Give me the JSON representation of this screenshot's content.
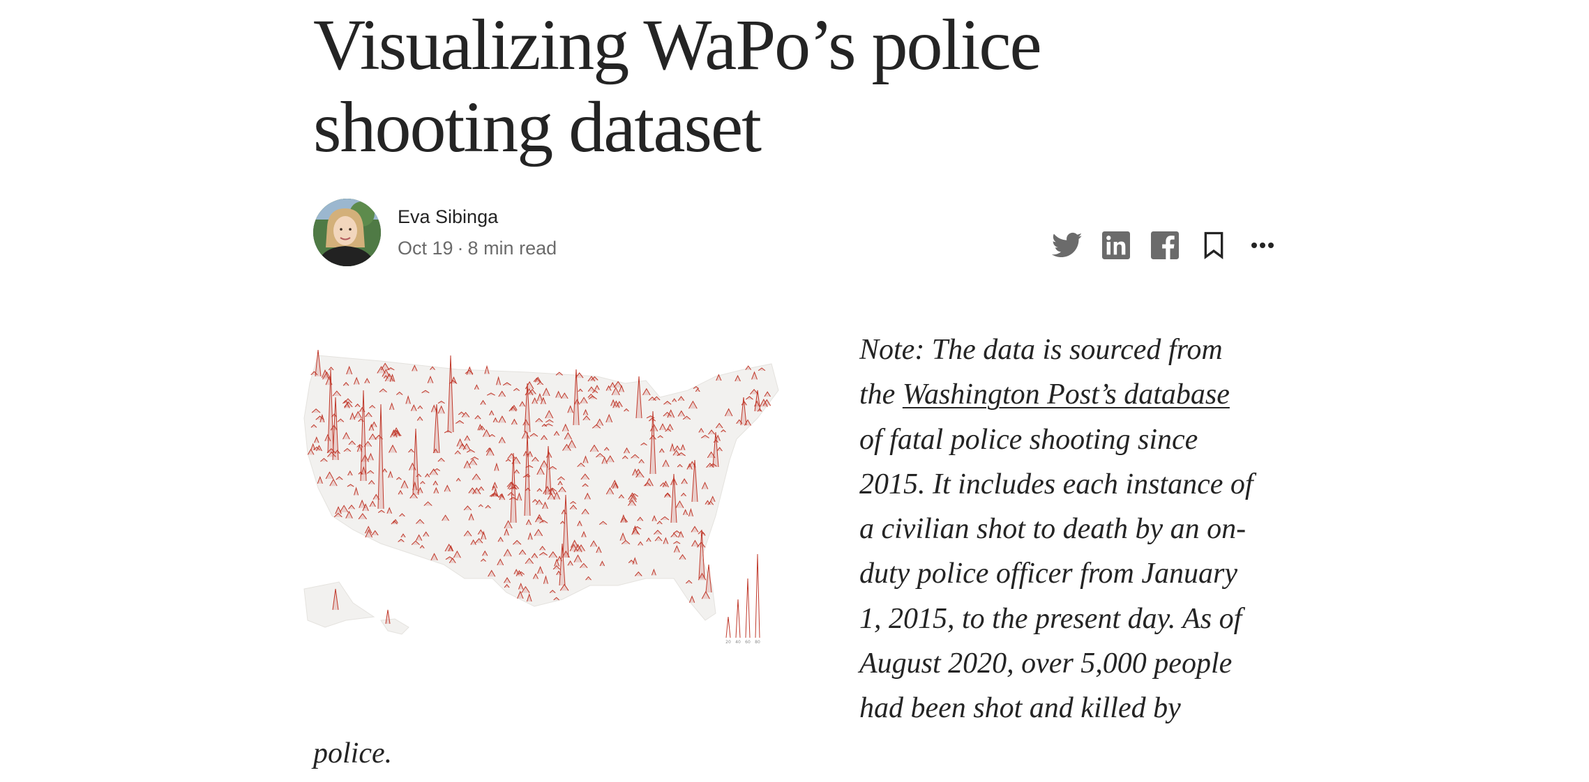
{
  "article": {
    "title_lines": [
      "Visualizing WaPo’s police",
      "shooting dataset"
    ],
    "author": {
      "name": "Eva Sibinga",
      "date": "Oct 19",
      "separator": "·",
      "read_time": "8 min read"
    },
    "actions": [
      {
        "icon": "twitter-icon"
      },
      {
        "icon": "linkedin-icon"
      },
      {
        "icon": "facebook-icon"
      },
      {
        "icon": "bookmark-icon"
      },
      {
        "icon": "more-icon"
      }
    ],
    "figure": {
      "legend_ticks": [
        "20",
        "40",
        "60",
        "80"
      ],
      "accent": "#c0392b",
      "land_color": "#f2f1ef"
    },
    "note": {
      "line1": "Note: The data is sourced from",
      "line2_prefix": "the ",
      "line2_link": "Washington Post’s database",
      "line3": "of fatal police shooting since",
      "line4": "2015. It includes each instance of",
      "line5": "a civilian shot to death by an on-",
      "line6": "duty police officer from January",
      "line7": "1, 2015, to the present day. As of",
      "line8": "August 2020, over 5,000 people",
      "line9": "had been shot and killed by",
      "line10": "police."
    }
  }
}
